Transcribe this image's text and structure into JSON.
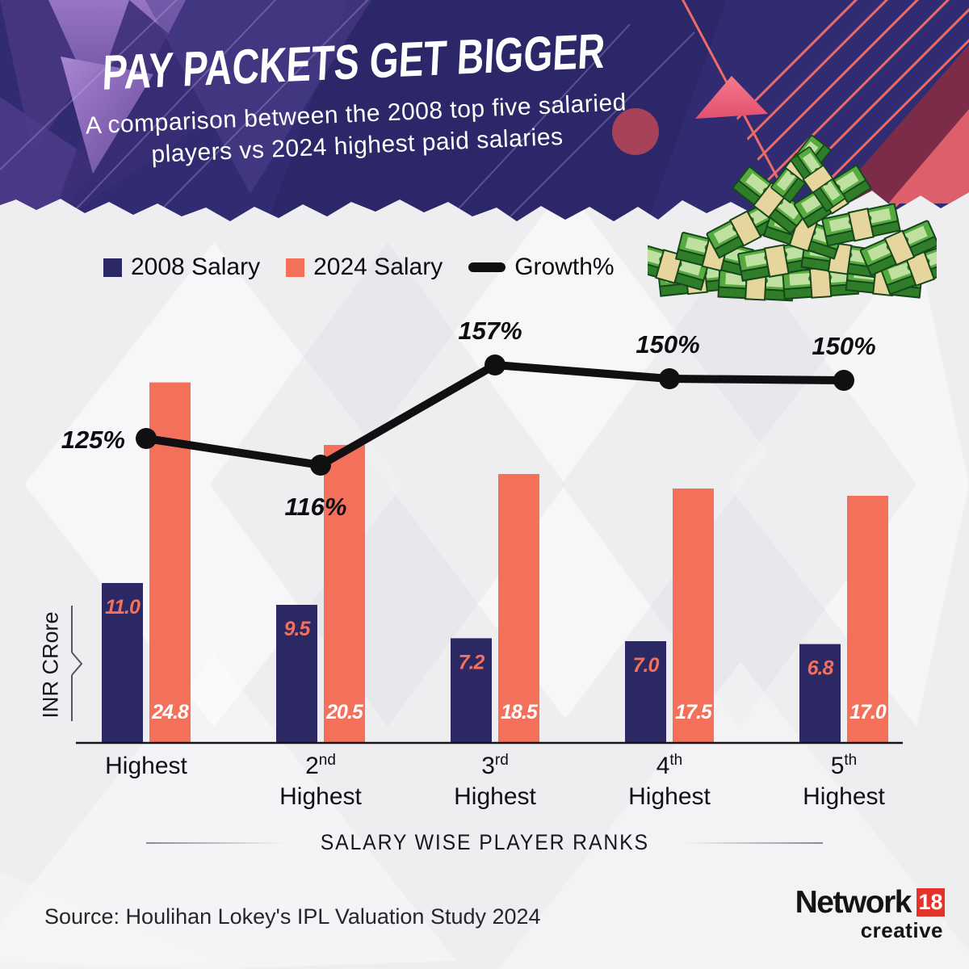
{
  "header": {
    "title": "PAY PACKETS GET BIGGER",
    "subtitle1": "A comparison between the 2008 top five salaried",
    "subtitle2": "players vs 2024 highest paid salaries"
  },
  "legend": {
    "items": [
      {
        "label": "2008 Salary",
        "color": "#2B2864",
        "swatch": "square"
      },
      {
        "label": "2024 Salary",
        "color": "#F3705A",
        "swatch": "square"
      },
      {
        "label": "Growth%",
        "color": "#101013",
        "swatch": "line"
      }
    ]
  },
  "chart_data": {
    "type": "bar",
    "title": "PAY PACKETS GET BIGGER",
    "categories": [
      {
        "ordinal": "Highest",
        "suffix": "",
        "line2": ""
      },
      {
        "ordinal": "2",
        "suffix": "nd",
        "line2": "Highest"
      },
      {
        "ordinal": "3",
        "suffix": "rd",
        "line2": "Highest"
      },
      {
        "ordinal": "4",
        "suffix": "th",
        "line2": "Highest"
      },
      {
        "ordinal": "5",
        "suffix": "th",
        "line2": "Highest"
      }
    ],
    "series": [
      {
        "name": "2008 Salary",
        "color": "#2B2864",
        "label_color": "#F3705A",
        "values": [
          11.0,
          9.5,
          7.2,
          7.0,
          6.8
        ],
        "value_labels": [
          "11.0",
          "9.5",
          "7.2",
          "7.0",
          "6.8"
        ]
      },
      {
        "name": "2024 Salary",
        "color": "#F3705A",
        "label_color": "#FFFFFF",
        "values": [
          24.8,
          20.5,
          18.5,
          17.5,
          17.0
        ],
        "value_labels": [
          "24.8",
          "20.5",
          "18.5",
          "17.5",
          "17.0"
        ]
      }
    ],
    "growth": {
      "name": "Growth%",
      "color": "#101013",
      "values": [
        125,
        116,
        157,
        150,
        150
      ],
      "labels": [
        "125%",
        "116%",
        "157%",
        "150%",
        "150%"
      ]
    },
    "ylabel": "INR CRore",
    "xlabel": "SALARY WISE PLAYER RANKS",
    "ylim": [
      0,
      26
    ],
    "legend_position": "top"
  },
  "footer": {
    "source": "Source: Houlihan Lokey's IPL Valuation Study 2024",
    "logo_network": "Network",
    "logo_18": "18",
    "logo_creative": "creative"
  },
  "colors": {
    "background": "#EEEEF1",
    "header_navy": "#312C71",
    "bar_navy": "#2B2864",
    "bar_salmon": "#F3705A",
    "growth_black": "#101013",
    "stripe_salmon": "#ED6A67",
    "money_green": "#55AB3F",
    "logo_red": "#E2342B"
  }
}
